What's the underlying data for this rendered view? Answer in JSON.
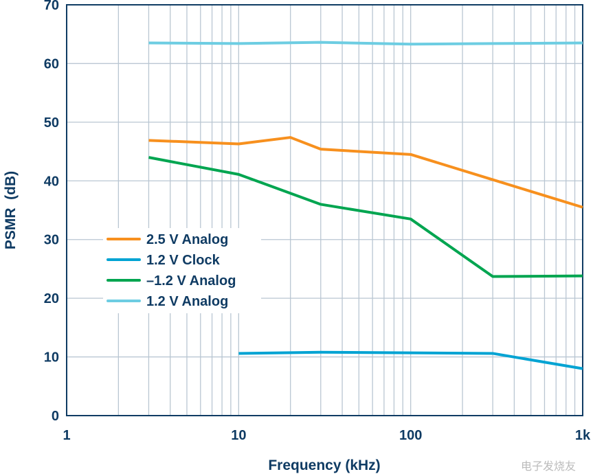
{
  "chart_data": {
    "type": "line",
    "xlabel": "Frequency (kHz)",
    "ylabel": "PSMR  (dB)",
    "xscale": "log",
    "xlim": [
      1,
      1000
    ],
    "ylim": [
      0,
      70
    ],
    "grid": true,
    "legend_position": "center-left",
    "xticks": [
      {
        "v": 1,
        "label": "1"
      },
      {
        "v": 10,
        "label": "10"
      },
      {
        "v": 100,
        "label": "100"
      },
      {
        "v": 1000,
        "label": "1k"
      }
    ],
    "yticks": [
      0,
      10,
      20,
      30,
      40,
      50,
      60,
      70
    ],
    "series": [
      {
        "name": "2.5 V Analog",
        "color": "#f7901e",
        "x": [
          3,
          10,
          20,
          30,
          100,
          300,
          1000
        ],
        "y": [
          46.9,
          46.3,
          47.4,
          45.4,
          44.5,
          40.2,
          35.5
        ]
      },
      {
        "name": "1.2 V Clock",
        "color": "#00a3d3",
        "x": [
          10,
          30,
          100,
          300,
          1000
        ],
        "y": [
          10.6,
          10.8,
          10.7,
          10.6,
          8.0
        ]
      },
      {
        "name": "–1.2 V Analog",
        "color": "#00a550",
        "x": [
          3,
          10,
          30,
          100,
          300,
          1000
        ],
        "y": [
          44.0,
          41.1,
          36.0,
          33.5,
          23.7,
          23.8
        ]
      },
      {
        "name": "1.2 V Analog",
        "color": "#6dcde2",
        "x": [
          3,
          10,
          30,
          100,
          300,
          1000
        ],
        "y": [
          63.5,
          63.4,
          63.6,
          63.3,
          63.4,
          63.5
        ]
      }
    ]
  },
  "watermark": "电子发烧友"
}
